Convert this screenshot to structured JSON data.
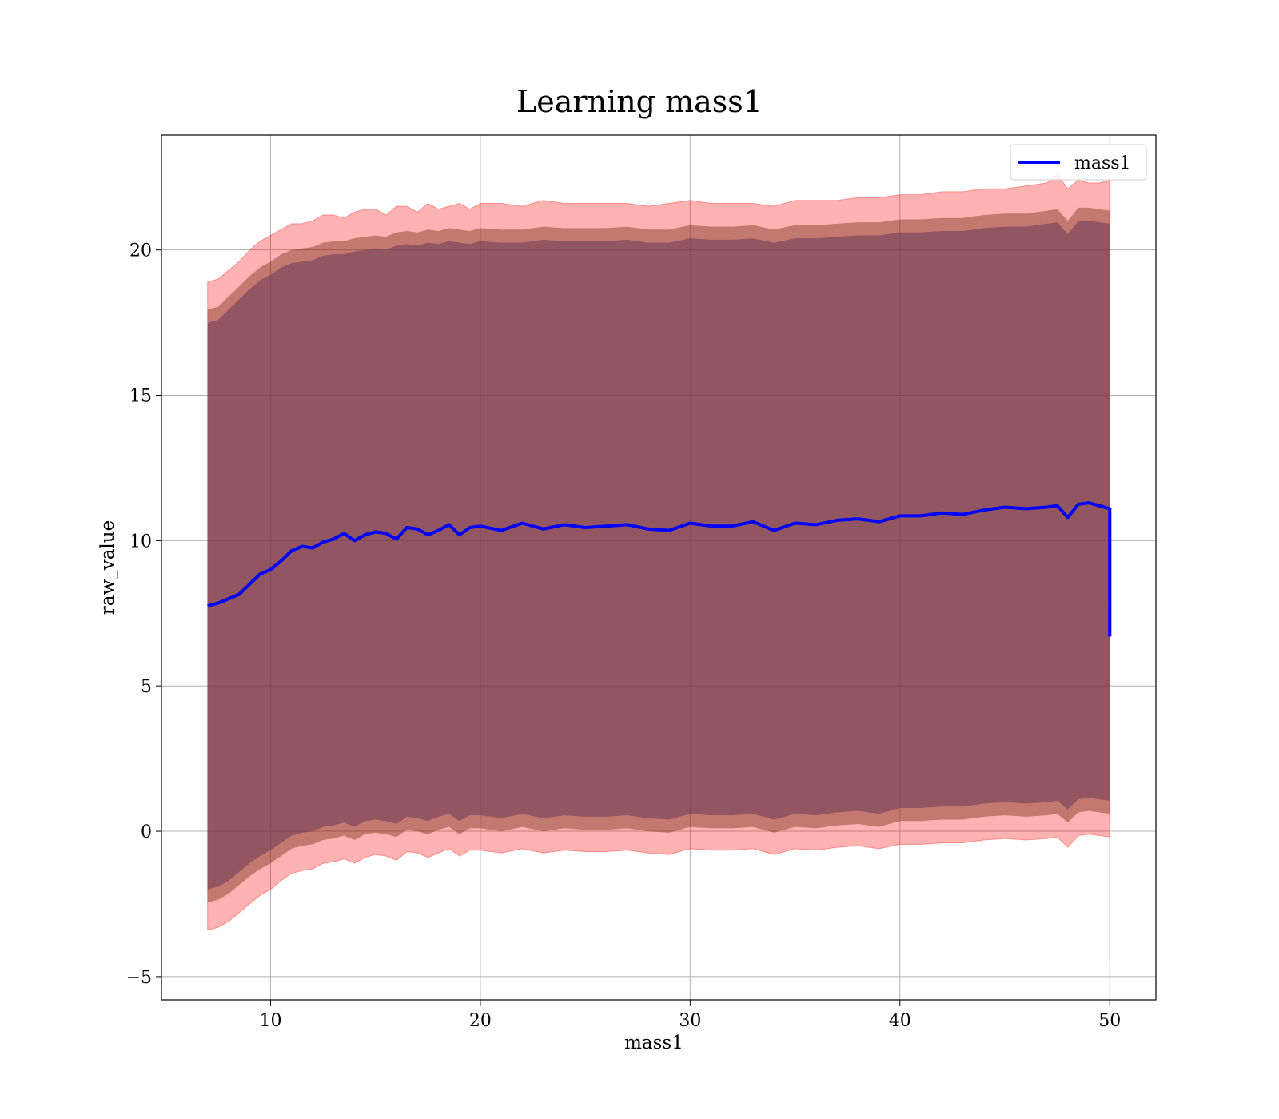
{
  "chart_data": {
    "type": "line",
    "title": "Learning mass1",
    "xlabel": "mass1",
    "ylabel": "raw_value",
    "xlim": [
      4.8,
      52.2
    ],
    "ylim": [
      -5.8,
      23.95
    ],
    "x_ticks": [
      10,
      20,
      30,
      40,
      50
    ],
    "x_tick_labels": [
      "10",
      "20",
      "30",
      "40",
      "50"
    ],
    "y_ticks": [
      -5,
      0,
      5,
      10,
      15,
      20
    ],
    "y_tick_labels": [
      "−5",
      "0",
      "5",
      "10",
      "15",
      "20"
    ],
    "grid": true,
    "legend": {
      "position": "top-right",
      "entries": [
        "mass1"
      ]
    },
    "series": [
      {
        "name": "mass1",
        "color": "#0000ff",
        "x": [
          7.0,
          7.5,
          8.0,
          8.5,
          9.0,
          9.5,
          10.0,
          10.5,
          11.0,
          11.5,
          12.0,
          12.5,
          13.0,
          13.5,
          14.0,
          14.5,
          15.0,
          15.5,
          16.0,
          16.5,
          17.0,
          17.5,
          18.0,
          18.5,
          19.0,
          19.5,
          20.0,
          21.0,
          22.0,
          23.0,
          24.0,
          25.0,
          26.0,
          27.0,
          28.0,
          29.0,
          30.0,
          31.0,
          32.0,
          33.0,
          34.0,
          35.0,
          36.0,
          37.0,
          38.0,
          39.0,
          40.0,
          41.0,
          42.0,
          43.0,
          44.0,
          45.0,
          46.0,
          47.0,
          47.5,
          48.0,
          48.5,
          49.0,
          49.5,
          50.0,
          50.0
        ],
        "y": [
          7.75,
          7.85,
          8.0,
          8.15,
          8.5,
          8.85,
          9.0,
          9.3,
          9.65,
          9.8,
          9.75,
          9.95,
          10.05,
          10.25,
          10.0,
          10.2,
          10.3,
          10.25,
          10.05,
          10.45,
          10.4,
          10.2,
          10.35,
          10.55,
          10.2,
          10.45,
          10.5,
          10.35,
          10.6,
          10.4,
          10.55,
          10.45,
          10.5,
          10.55,
          10.4,
          10.35,
          10.6,
          10.5,
          10.5,
          10.65,
          10.35,
          10.6,
          10.55,
          10.7,
          10.75,
          10.65,
          10.85,
          10.85,
          10.95,
          10.9,
          11.05,
          11.15,
          11.1,
          11.15,
          11.2,
          10.8,
          11.25,
          11.3,
          11.2,
          11.1,
          6.7
        ],
        "band_outer_upper": [
          18.9,
          19.0,
          19.3,
          19.6,
          20.0,
          20.3,
          20.5,
          20.7,
          20.9,
          20.9,
          21.0,
          21.2,
          21.2,
          21.1,
          21.3,
          21.4,
          21.4,
          21.2,
          21.5,
          21.5,
          21.3,
          21.6,
          21.4,
          21.5,
          21.6,
          21.4,
          21.6,
          21.6,
          21.5,
          21.7,
          21.6,
          21.6,
          21.6,
          21.6,
          21.5,
          21.6,
          21.7,
          21.6,
          21.6,
          21.6,
          21.5,
          21.7,
          21.7,
          21.7,
          21.8,
          21.8,
          21.9,
          21.9,
          22.0,
          22.0,
          22.1,
          22.1,
          22.2,
          22.3,
          22.6,
          22.1,
          22.4,
          22.3,
          22.3,
          22.4,
          22.4
        ],
        "band_outer_lower": [
          -3.4,
          -3.3,
          -3.1,
          -2.8,
          -2.5,
          -2.2,
          -2.0,
          -1.7,
          -1.45,
          -1.35,
          -1.3,
          -1.1,
          -1.05,
          -0.95,
          -1.1,
          -0.9,
          -0.8,
          -0.85,
          -1.0,
          -0.7,
          -0.75,
          -0.9,
          -0.75,
          -0.6,
          -0.85,
          -0.65,
          -0.65,
          -0.75,
          -0.6,
          -0.75,
          -0.65,
          -0.7,
          -0.7,
          -0.65,
          -0.75,
          -0.8,
          -0.6,
          -0.65,
          -0.65,
          -0.6,
          -0.8,
          -0.6,
          -0.65,
          -0.55,
          -0.5,
          -0.6,
          -0.45,
          -0.45,
          -0.4,
          -0.4,
          -0.3,
          -0.25,
          -0.3,
          -0.25,
          -0.2,
          -0.55,
          -0.15,
          -0.1,
          -0.15,
          -0.2,
          -4.5
        ],
        "band_inner_upper": [
          17.95,
          18.05,
          18.4,
          18.75,
          19.1,
          19.4,
          19.6,
          19.85,
          20.0,
          20.05,
          20.1,
          20.25,
          20.3,
          20.3,
          20.4,
          20.45,
          20.5,
          20.45,
          20.6,
          20.65,
          20.6,
          20.7,
          20.65,
          20.75,
          20.7,
          20.65,
          20.75,
          20.7,
          20.7,
          20.8,
          20.75,
          20.75,
          20.75,
          20.8,
          20.7,
          20.7,
          20.85,
          20.8,
          20.8,
          20.85,
          20.7,
          20.85,
          20.85,
          20.9,
          20.95,
          20.95,
          21.05,
          21.05,
          21.1,
          21.1,
          21.2,
          21.25,
          21.25,
          21.35,
          21.4,
          21.0,
          21.45,
          21.45,
          21.4,
          21.35,
          21.35
        ],
        "band_inner_lower": [
          -2.45,
          -2.35,
          -2.15,
          -1.85,
          -1.55,
          -1.3,
          -1.1,
          -0.85,
          -0.6,
          -0.5,
          -0.45,
          -0.3,
          -0.25,
          -0.15,
          -0.3,
          -0.1,
          -0.05,
          -0.1,
          -0.2,
          0.05,
          0.0,
          -0.1,
          0.05,
          0.15,
          -0.1,
          0.1,
          0.1,
          0.0,
          0.15,
          0.0,
          0.1,
          0.05,
          0.05,
          0.1,
          0.0,
          -0.05,
          0.15,
          0.1,
          0.1,
          0.15,
          -0.05,
          0.15,
          0.1,
          0.2,
          0.25,
          0.15,
          0.35,
          0.35,
          0.4,
          0.4,
          0.5,
          0.55,
          0.5,
          0.55,
          0.6,
          0.3,
          0.65,
          0.7,
          0.65,
          0.6,
          0.6
        ]
      }
    ]
  }
}
